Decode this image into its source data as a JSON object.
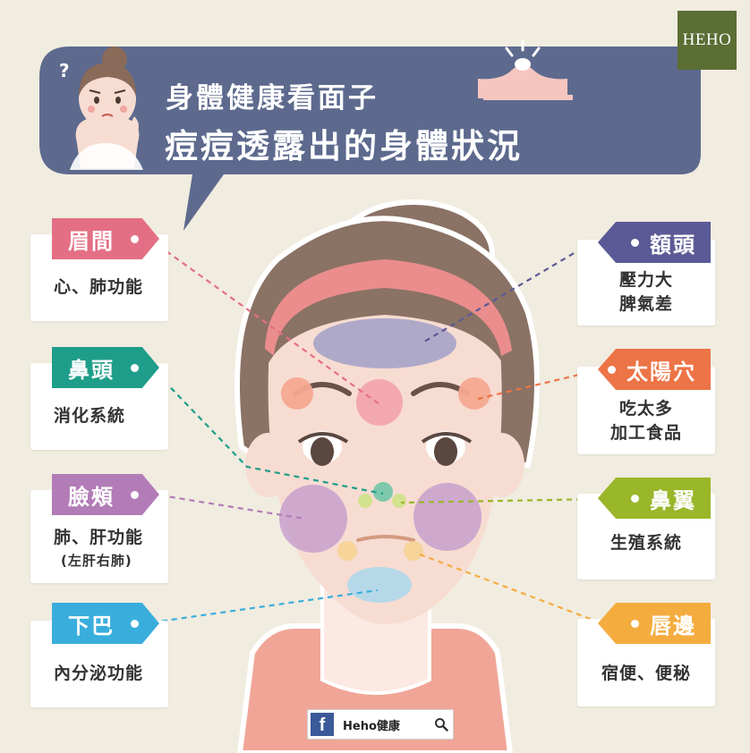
{
  "brand": {
    "logo_text": "HEHO"
  },
  "header": {
    "title_line1": "身體健康看面子",
    "title_line2": "痘痘透露出的身體狀況"
  },
  "labels": [
    {
      "id": "brow",
      "name": "眉間",
      "side": "left",
      "desc": [
        "心、肺功能"
      ],
      "color": "#e46f84"
    },
    {
      "id": "nose-tip",
      "name": "鼻頭",
      "side": "left",
      "desc": [
        "消化系統"
      ],
      "color": "#1e9e8a"
    },
    {
      "id": "cheeks",
      "name": "臉頰",
      "side": "left",
      "desc": [
        "肺、肝功能"
      ],
      "note": "(左肝右肺)",
      "color": "#b27cb7"
    },
    {
      "id": "chin",
      "name": "下巴",
      "side": "left",
      "desc": [
        "內分泌功能"
      ],
      "color": "#39aedd"
    },
    {
      "id": "forehead",
      "name": "額頭",
      "side": "right",
      "desc": [
        "壓力大",
        "脾氣差"
      ],
      "color": "#5b5a96"
    },
    {
      "id": "temple",
      "name": "太陽穴",
      "side": "right",
      "desc": [
        "吃太多",
        "加工食品"
      ],
      "color": "#ec7446"
    },
    {
      "id": "nose-wing",
      "name": "鼻翼",
      "side": "right",
      "desc": [
        "生殖系統"
      ],
      "color": "#9ab629"
    },
    {
      "id": "lips",
      "name": "唇邊",
      "side": "right",
      "desc": [
        "宿便、便秘"
      ],
      "color": "#f5ac3f"
    }
  ],
  "colors": {
    "background": "#f1ece0",
    "bubble": "#5d6a8e",
    "hair": "#8a7265",
    "skin": "#f7dcd2",
    "headband": "#ea8d8c"
  },
  "footer": {
    "facebook_name": "Heho健康",
    "fb_icon": "facebook-icon",
    "search_icon": "magnifier-icon"
  }
}
